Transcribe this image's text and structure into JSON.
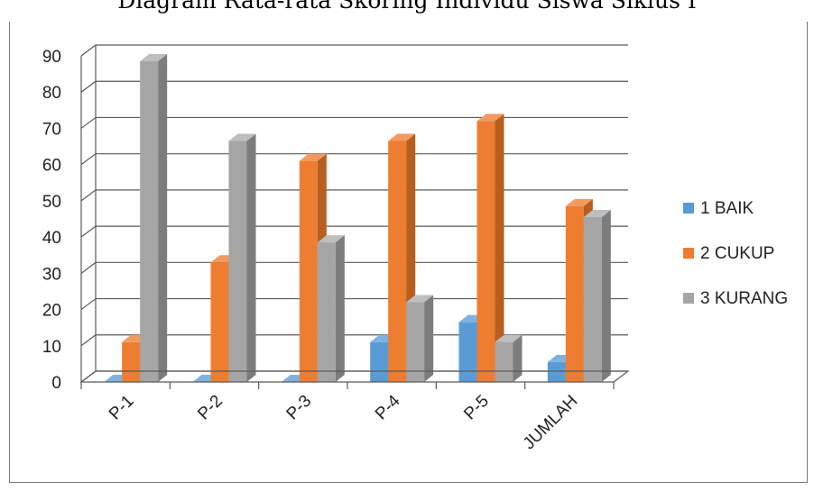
{
  "chart_data": {
    "type": "bar",
    "title": "Diagram Rata-rata Skoring Individu Siswa Siklus I",
    "categories": [
      "P-1",
      "P-2",
      "P-3",
      "P-4",
      "P-5",
      "JUMLAH"
    ],
    "series": [
      {
        "name": "1 BAIK",
        "color": "#5B9BD5",
        "side_color": "#3F7DB8",
        "top_color": "#7FB2E0",
        "values": [
          0,
          0,
          0,
          11,
          16.5,
          5.5
        ]
      },
      {
        "name": "2 CUKUP",
        "color": "#ED7D31",
        "side_color": "#B85E1E",
        "top_color": "#F29A5E",
        "values": [
          11,
          33,
          61,
          66.5,
          72,
          48.5
        ]
      },
      {
        "name": "3 KURANG",
        "color": "#A5A5A5",
        "side_color": "#7C7C7C",
        "top_color": "#BEBEBE",
        "values": [
          88.5,
          66.5,
          38.5,
          22,
          11,
          45.5
        ]
      }
    ],
    "y_ticks": [
      "0",
      "10",
      "20",
      "30",
      "40",
      "50",
      "60",
      "70",
      "80",
      "90"
    ],
    "ylim": [
      0,
      90
    ],
    "grid": true,
    "legend_position": "right"
  }
}
